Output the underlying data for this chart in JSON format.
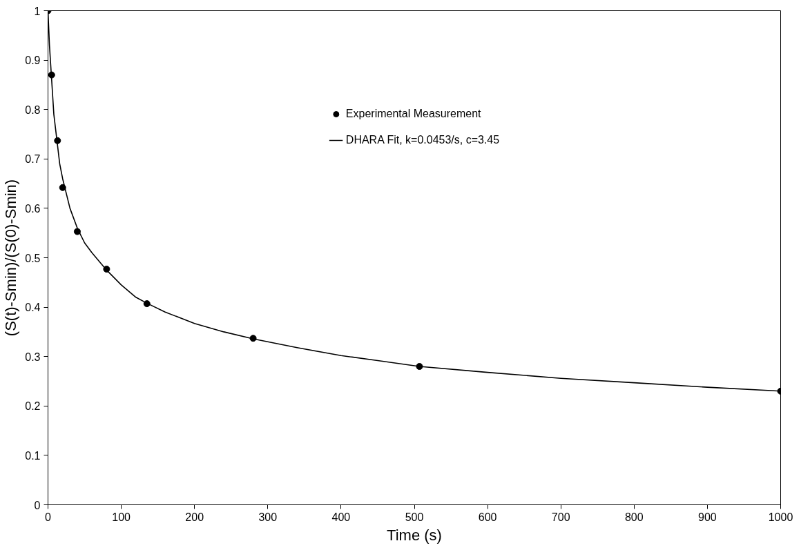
{
  "chart_data": {
    "type": "scatter",
    "xlabel": "Time (s)",
    "ylabel": "(S(t)-Smin)/(S(0)-Smin)",
    "xlim": [
      0,
      1000
    ],
    "xticks": [
      0,
      100,
      200,
      300,
      400,
      500,
      600,
      700,
      800,
      900,
      1000
    ],
    "ylim": [
      0,
      1
    ],
    "yticks": [
      0,
      0.1,
      0.2,
      0.3,
      0.4,
      0.5,
      0.6,
      0.7,
      0.8,
      0.9,
      1
    ],
    "grid": false,
    "legend": "top",
    "series": [
      {
        "name": "Experimental Measurement",
        "marker": "circle",
        "color": "#000000",
        "x": [
          0,
          5,
          13,
          20,
          40,
          80,
          135,
          280,
          507,
          1000
        ],
        "values": [
          1,
          0.87,
          0.737,
          0.642,
          0.553,
          0.477,
          0.407,
          0.337,
          0.28,
          0.23
        ]
      },
      {
        "name": "DHARA Fit, k=0.0453/s, c=3.45",
        "type": "line",
        "line_style": "solid",
        "color": "#000000",
        "x": [
          0,
          2,
          5,
          8,
          12,
          16,
          20,
          30,
          40,
          50,
          60,
          80,
          100,
          120,
          135,
          160,
          200,
          240,
          280,
          340,
          400,
          450,
          507,
          600,
          700,
          800,
          900,
          1000
        ],
        "values": [
          1,
          0.93,
          0.86,
          0.79,
          0.74,
          0.69,
          0.66,
          0.6,
          0.56,
          0.53,
          0.51,
          0.475,
          0.445,
          0.42,
          0.408,
          0.39,
          0.367,
          0.35,
          0.336,
          0.318,
          0.302,
          0.292,
          0.28,
          0.268,
          0.256,
          0.247,
          0.238,
          0.23
        ]
      }
    ]
  }
}
